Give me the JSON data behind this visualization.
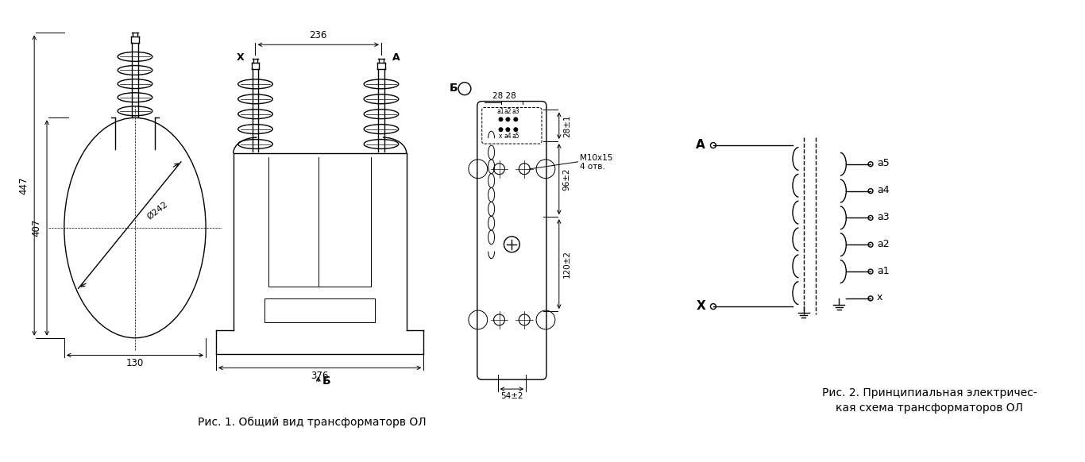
{
  "bg_color": "#ffffff",
  "line_color": "#000000",
  "fig_width": 13.66,
  "fig_height": 5.82,
  "caption1": "Рис. 1. Общий вид трансформаторв ОЛ",
  "caption2_line1": "Рис. 2. Принципиальная электричес-",
  "caption2_line2": "кая схема трансформаторов ОЛ",
  "dim_236": "236",
  "dim_447": "447",
  "dim_407": "407",
  "dim_130": "130",
  "dim_376": "376",
  "dim_d242": "Ø242",
  "dim_28_28": "28 28",
  "dim_281": "28±1",
  "dim_962": "96±2",
  "dim_1202": "120±2",
  "dim_542": "54±2",
  "label_X": "X",
  "label_A": "A",
  "label_B_front": "Б",
  "label_B_side": "Б",
  "label_m10": "M10x15",
  "label_4otv": "4 отв.",
  "label_schA": "A",
  "label_schX": "X",
  "label_a5": "a5",
  "label_a4": "a4",
  "label_a3": "a3",
  "label_a2": "a2",
  "label_a1": "a1",
  "label_x_sec": "x",
  "term_labels_top": [
    "a1",
    "a2",
    "a3"
  ],
  "term_labels_bot": [
    "x",
    "a4",
    "a5"
  ]
}
